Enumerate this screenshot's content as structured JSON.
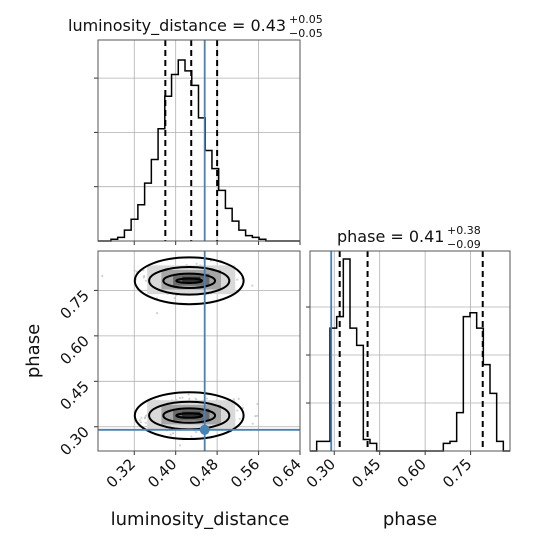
{
  "chart_data": [
    {
      "type": "histogram",
      "panel": "top-left",
      "title": {
        "text": "luminosity_distance = 0.43",
        "sup": "+0.05",
        "sub": "−0.05"
      },
      "xlim": [
        0.25,
        0.64
      ],
      "bin_edges": [
        0.25,
        0.262,
        0.275,
        0.288,
        0.301,
        0.314,
        0.327,
        0.34,
        0.353,
        0.366,
        0.379,
        0.392,
        0.405,
        0.418,
        0.431,
        0.444,
        0.457,
        0.47,
        0.483,
        0.496,
        0.509,
        0.522,
        0.535,
        0.548,
        0.561,
        0.574,
        0.587,
        0.6,
        0.613,
        0.626,
        0.64
      ],
      "counts": [
        0.0,
        0.0,
        0.01,
        0.02,
        0.06,
        0.12,
        0.2,
        0.32,
        0.45,
        0.62,
        0.8,
        0.92,
        1.0,
        0.94,
        0.86,
        0.68,
        0.5,
        0.4,
        0.28,
        0.18,
        0.11,
        0.06,
        0.03,
        0.02,
        0.01,
        0.0,
        0.0,
        0.0,
        0.0,
        0.0
      ],
      "quantiles": [
        0.38,
        0.43,
        0.48
      ],
      "truth": 0.456,
      "grid": true
    },
    {
      "type": "histogram",
      "panel": "bottom-right",
      "title": {
        "text": "phase = 0.41",
        "sup": "+0.38",
        "sub": "−0.09"
      },
      "xlim": [
        0.22,
        0.88
      ],
      "xlabel": "phase",
      "xticks": [
        "0.30",
        "0.45",
        "0.60",
        "0.75"
      ],
      "bin_edges": [
        0.22,
        0.242,
        0.264,
        0.286,
        0.308,
        0.33,
        0.352,
        0.374,
        0.396,
        0.418,
        0.44,
        0.462,
        0.484,
        0.506,
        0.528,
        0.55,
        0.572,
        0.594,
        0.616,
        0.638,
        0.66,
        0.682,
        0.704,
        0.726,
        0.748,
        0.77,
        0.792,
        0.814,
        0.836,
        0.858,
        0.88
      ],
      "counts": [
        0.0,
        0.05,
        0.05,
        0.64,
        0.7,
        1.0,
        0.64,
        0.55,
        0.06,
        0.04,
        0.0,
        0.0,
        0.0,
        0.0,
        0.0,
        0.0,
        0.0,
        0.0,
        0.0,
        0.0,
        0.04,
        0.05,
        0.2,
        0.7,
        0.72,
        0.64,
        0.45,
        0.3,
        0.05,
        0.0
      ],
      "quantiles": [
        0.318,
        0.41,
        0.79
      ],
      "truth": 0.29,
      "grid": true
    },
    {
      "type": "scatter-density",
      "panel": "bottom-left",
      "xlabel": "luminosity_distance",
      "ylabel": "phase",
      "xlim": [
        0.25,
        0.64
      ],
      "ylim": [
        0.22,
        0.88
      ],
      "xticks": [
        "0.32",
        "0.40",
        "0.48",
        "0.56",
        "0.64"
      ],
      "yticks": [
        "0.30",
        "0.45",
        "0.60",
        "0.75"
      ],
      "clusters": [
        {
          "center_x": 0.43,
          "center_y": 0.785,
          "spread_x": 0.05,
          "spread_y": 0.035
        },
        {
          "center_x": 0.43,
          "center_y": 0.34,
          "spread_x": 0.05,
          "spread_y": 0.035
        }
      ],
      "truth": {
        "x": 0.456,
        "y": 0.29
      },
      "grid": true
    }
  ],
  "colors": {
    "truth": "#4682b4",
    "hist": "#000000",
    "grid": "#b0b0b0",
    "points": "#bdbdbd"
  }
}
